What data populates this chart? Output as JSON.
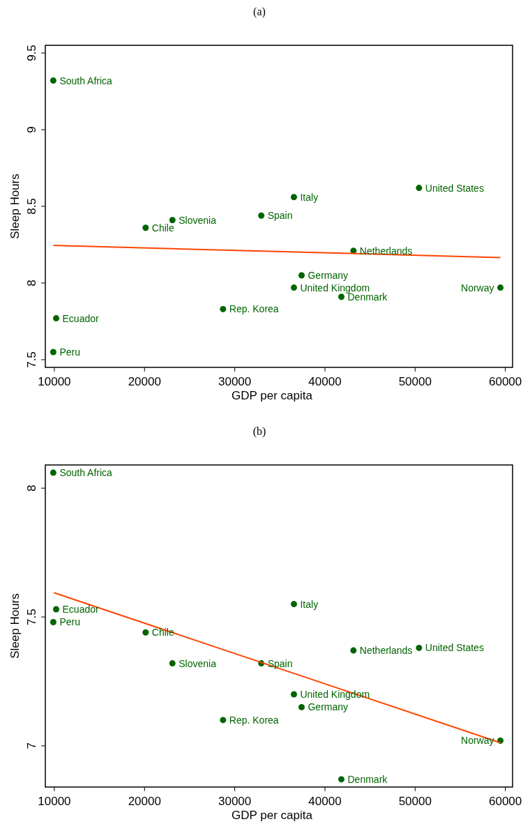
{
  "chart_data": [
    {
      "type": "scatter",
      "title": "(a)",
      "xlabel": "GDP per capita",
      "ylabel": "Sleep Hours",
      "xlim": [
        9000,
        60800
      ],
      "xticks": [
        10000,
        20000,
        30000,
        40000,
        50000,
        60000
      ],
      "ylim": [
        7.45,
        9.55
      ],
      "yticks": [
        7.5,
        8,
        8.5,
        9,
        9.5
      ],
      "grid": false,
      "series": [
        {
          "marker": "circle",
          "color": "#006400",
          "x": [
            9880,
            10200,
            9880,
            20120,
            23090,
            28700,
            32940,
            36560,
            50430,
            43160,
            37410,
            36560,
            41820,
            59450
          ],
          "values": [
            9.32,
            7.77,
            7.55,
            8.36,
            8.41,
            7.83,
            8.44,
            8.56,
            8.62,
            8.21,
            8.05,
            7.97,
            7.91,
            7.97
          ]
        },
        {
          "type": "line",
          "color": "#ff4500",
          "x": [
            9880,
            59450
          ],
          "values": [
            8.245,
            8.166
          ]
        }
      ],
      "annotations": [
        {
          "text": "South Africa",
          "x": 9880,
          "y": 9.32
        },
        {
          "text": "Ecuador",
          "x": 10200,
          "y": 7.77
        },
        {
          "text": "Peru",
          "x": 9880,
          "y": 7.55
        },
        {
          "text": "Chile",
          "x": 20120,
          "y": 8.36
        },
        {
          "text": "Slovenia",
          "x": 23090,
          "y": 8.41
        },
        {
          "text": "Rep. Korea",
          "x": 28700,
          "y": 7.83
        },
        {
          "text": "Spain",
          "x": 32940,
          "y": 8.44
        },
        {
          "text": "Italy",
          "x": 36560,
          "y": 8.56
        },
        {
          "text": "United States",
          "x": 50430,
          "y": 8.62
        },
        {
          "text": "Netherlands",
          "x": 43160,
          "y": 8.21
        },
        {
          "text": "Germany",
          "x": 37410,
          "y": 8.05
        },
        {
          "text": "United Kingdom",
          "x": 36560,
          "y": 7.97
        },
        {
          "text": "Denmark",
          "x": 41820,
          "y": 7.91
        },
        {
          "text": "Norway",
          "x": 59450,
          "y": 7.97
        }
      ]
    },
    {
      "type": "scatter",
      "title": "(b)",
      "xlabel": "GDP per capita",
      "ylabel": "Sleep Hours",
      "xlim": [
        9000,
        60800
      ],
      "xticks": [
        10000,
        20000,
        30000,
        40000,
        50000,
        60000
      ],
      "ylim": [
        6.84,
        8.09
      ],
      "yticks": [
        7,
        7.5,
        8
      ],
      "grid": false,
      "series": [
        {
          "marker": "circle",
          "color": "#006400",
          "x": [
            9880,
            10200,
            9880,
            20120,
            23090,
            28700,
            32940,
            36560,
            50430,
            43160,
            37410,
            36560,
            41820,
            59450
          ],
          "values": [
            8.06,
            7.53,
            7.48,
            7.44,
            7.32,
            7.1,
            7.32,
            7.55,
            7.38,
            7.37,
            7.15,
            7.2,
            6.87,
            7.02
          ]
        },
        {
          "type": "line",
          "color": "#ff4500",
          "x": [
            9950,
            59450
          ],
          "values": [
            7.594,
            7.012
          ]
        }
      ],
      "annotations": [
        {
          "text": "South Africa",
          "x": 9880,
          "y": 8.06
        },
        {
          "text": "Ecuador",
          "x": 10200,
          "y": 7.53
        },
        {
          "text": "Peru",
          "x": 9880,
          "y": 7.48
        },
        {
          "text": "Chile",
          "x": 20120,
          "y": 7.44
        },
        {
          "text": "Slovenia",
          "x": 23090,
          "y": 7.32
        },
        {
          "text": "Rep. Korea",
          "x": 28700,
          "y": 7.1
        },
        {
          "text": "Spain",
          "x": 32940,
          "y": 7.32
        },
        {
          "text": "Italy",
          "x": 36560,
          "y": 7.55
        },
        {
          "text": "United States",
          "x": 50430,
          "y": 7.38
        },
        {
          "text": "Netherlands",
          "x": 43160,
          "y": 7.37
        },
        {
          "text": "Germany",
          "x": 37410,
          "y": 7.15
        },
        {
          "text": "United Kingdom",
          "x": 36560,
          "y": 7.2
        },
        {
          "text": "Denmark",
          "x": 41820,
          "y": 6.87
        },
        {
          "text": "Norway",
          "x": 59450,
          "y": 7.02
        }
      ]
    }
  ]
}
